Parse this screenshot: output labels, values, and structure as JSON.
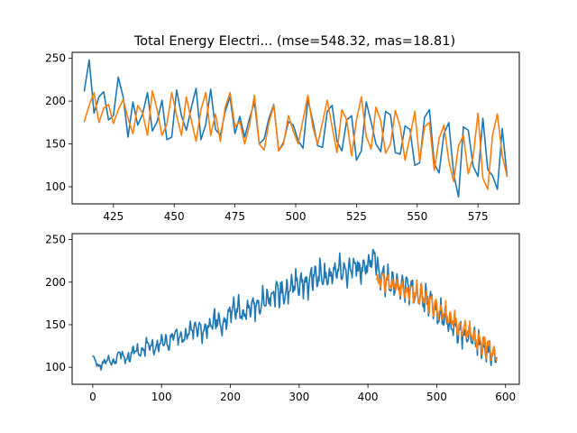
{
  "chart_data": [
    {
      "type": "line",
      "title": "Total Energy Electri... (mse=548.32, mas=18.81)",
      "xlabel": "",
      "ylabel": "",
      "xlim": [
        408,
        592
      ],
      "ylim": [
        80,
        257
      ],
      "xticks": [
        425,
        450,
        475,
        500,
        525,
        550,
        575
      ],
      "yticks": [
        100,
        150,
        200,
        250
      ],
      "grid": false,
      "series": [
        {
          "color": "#1f77b4",
          "x": [
            413,
            415,
            417,
            419,
            421,
            423,
            425,
            427,
            429,
            431,
            433,
            435,
            437,
            439,
            441,
            443,
            445,
            447,
            449,
            451,
            453,
            455,
            457,
            459,
            461,
            463,
            465,
            467,
            469,
            471,
            473,
            475,
            477,
            479,
            481,
            483,
            485,
            487,
            489,
            491,
            493,
            495,
            497,
            499,
            501,
            503,
            505,
            507,
            509,
            511,
            513,
            515,
            517,
            519,
            521,
            523,
            525,
            527,
            529,
            531,
            533,
            535,
            537,
            539,
            541,
            543,
            545,
            547,
            549,
            551,
            553,
            555,
            557,
            559,
            561,
            563,
            565,
            567,
            569,
            571,
            573,
            575,
            577,
            579,
            581,
            583,
            585,
            587
          ],
          "y": [
            212,
            248,
            186,
            205,
            211,
            178,
            183,
            228,
            205,
            158,
            199,
            172,
            185,
            210,
            165,
            176,
            201,
            155,
            158,
            213,
            183,
            166,
            192,
            215,
            155,
            173,
            214,
            167,
            160,
            188,
            205,
            162,
            182,
            158,
            180,
            199,
            150,
            156,
            180,
            196,
            142,
            152,
            176,
            172,
            154,
            145,
            202,
            177,
            148,
            146,
            188,
            195,
            153,
            142,
            178,
            183,
            131,
            142,
            199,
            176,
            150,
            141,
            188,
            184,
            140,
            138,
            171,
            167,
            125,
            128,
            181,
            190,
            127,
            116,
            162,
            175,
            115,
            88,
            170,
            166,
            124,
            112,
            180,
            120,
            113,
            97,
            168,
            112
          ]
        },
        {
          "color": "#ff7f0e",
          "x": [
            413,
            415,
            417,
            419,
            421,
            423,
            425,
            427,
            429,
            431,
            433,
            435,
            437,
            439,
            441,
            443,
            445,
            447,
            449,
            451,
            453,
            455,
            457,
            459,
            461,
            463,
            465,
            467,
            469,
            471,
            473,
            475,
            477,
            479,
            481,
            483,
            485,
            487,
            489,
            491,
            493,
            495,
            497,
            499,
            501,
            503,
            505,
            507,
            509,
            511,
            513,
            515,
            517,
            519,
            521,
            523,
            525,
            527,
            529,
            531,
            533,
            535,
            537,
            539,
            541,
            543,
            545,
            547,
            549,
            551,
            553,
            555,
            557,
            559,
            561,
            563,
            565,
            567,
            569,
            571,
            573,
            575,
            577,
            579,
            581,
            583,
            585,
            587
          ],
          "y": [
            176,
            195,
            210,
            175,
            192,
            196,
            174,
            190,
            202,
            180,
            162,
            195,
            186,
            160,
            212,
            190,
            160,
            173,
            210,
            183,
            160,
            205,
            178,
            153,
            190,
            210,
            160,
            185,
            153,
            193,
            210,
            170,
            176,
            150,
            172,
            207,
            150,
            143,
            175,
            195,
            142,
            150,
            183,
            165,
            150,
            178,
            207,
            170,
            150,
            175,
            201,
            170,
            140,
            190,
            178,
            136,
            178,
            205,
            159,
            144,
            193,
            177,
            139,
            150,
            189,
            170,
            131,
            158,
            188,
            130,
            170,
            175,
            119,
            156,
            172,
            130,
            106,
            148,
            160,
            115,
            135,
            186,
            110,
            97,
            160,
            185,
            136,
            112
          ]
        }
      ]
    },
    {
      "type": "line",
      "title": "",
      "xlabel": "",
      "ylabel": "",
      "xlim": [
        -30,
        620
      ],
      "ylim": [
        80,
        257
      ],
      "xticks": [
        0,
        100,
        200,
        300,
        400,
        500,
        600
      ],
      "yticks": [
        100,
        150,
        200,
        250
      ],
      "grid": false,
      "series": [
        {
          "color": "#1f77b4",
          "x": [
            0,
            10,
            20,
            30,
            40,
            50,
            60,
            70,
            80,
            90,
            100,
            110,
            120,
            130,
            140,
            150,
            160,
            170,
            180,
            190,
            200,
            210,
            220,
            230,
            240,
            250,
            260,
            270,
            280,
            290,
            300,
            310,
            320,
            330,
            340,
            350,
            360,
            370,
            380,
            390,
            400,
            410,
            420,
            430,
            440,
            450,
            460,
            470,
            480,
            490,
            500,
            510,
            520,
            530,
            540,
            550,
            560,
            570,
            580,
            587
          ],
          "y": [
            112,
            100,
            110,
            104,
            118,
            108,
            120,
            115,
            128,
            122,
            130,
            128,
            140,
            133,
            142,
            148,
            140,
            150,
            155,
            150,
            165,
            170,
            160,
            175,
            170,
            182,
            180,
            190,
            185,
            195,
            200,
            195,
            205,
            210,
            203,
            208,
            215,
            212,
            218,
            214,
            220,
            230,
            205,
            200,
            198,
            195,
            192,
            188,
            180,
            175,
            165,
            160,
            150,
            145,
            140,
            135,
            128,
            122,
            117,
            112
          ],
          "amp": [
            6,
            8,
            9,
            10,
            12,
            14,
            16,
            18,
            19,
            20,
            20,
            20,
            21,
            22,
            23,
            25,
            25,
            25,
            26,
            27,
            28,
            28,
            28,
            30,
            32,
            32,
            33,
            33,
            33,
            34,
            35,
            35,
            35,
            36,
            36,
            36,
            36,
            35,
            35,
            35,
            34,
            36,
            38,
            38,
            38,
            37,
            37,
            37,
            36,
            35,
            35,
            34,
            33,
            32,
            32,
            31,
            30,
            30,
            29,
            28
          ]
        },
        {
          "color": "#ff7f0e",
          "x": [
            413,
            420,
            430,
            440,
            450,
            460,
            470,
            480,
            490,
            500,
            510,
            520,
            530,
            540,
            550,
            560,
            570,
            580,
            587
          ],
          "y": [
            198,
            202,
            200,
            196,
            192,
            188,
            186,
            182,
            176,
            170,
            164,
            158,
            150,
            144,
            138,
            132,
            126,
            120,
            114
          ],
          "amp": [
            22,
            24,
            25,
            25,
            26,
            26,
            27,
            27,
            27,
            28,
            28,
            28,
            28,
            28,
            27,
            26,
            26,
            26,
            26
          ]
        }
      ]
    }
  ]
}
